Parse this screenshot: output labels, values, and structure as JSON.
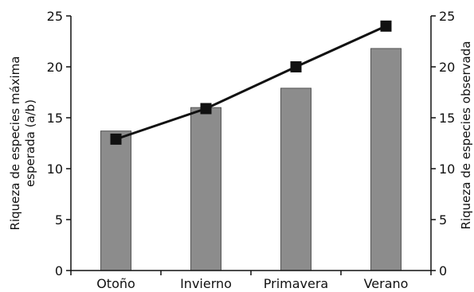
{
  "chart_data": {
    "type": "bar",
    "categories": [
      "Otoño",
      "Invierno",
      "Primavera",
      "Verano"
    ],
    "series": [
      {
        "kind": "bar",
        "axis": "left",
        "values": [
          13.7,
          16.0,
          17.9,
          21.8
        ],
        "color": "#8c8c8c"
      },
      {
        "kind": "line",
        "axis": "right",
        "marker": "square",
        "values": [
          12.9,
          15.9,
          20.0,
          24.0
        ],
        "color": "#111111"
      }
    ],
    "ylabel_left": [
      "Riqueza de especies  máxima",
      "esperada (a/b)"
    ],
    "ylabel_right": "Riqueza de especies observada",
    "ylim_left": [
      0,
      25
    ],
    "ylim_right": [
      0,
      25
    ],
    "yticks_left": [
      "0",
      "5",
      "10",
      "15",
      "20",
      "25"
    ],
    "yticks_right": [
      "0",
      "5",
      "10",
      "15",
      "20",
      "25"
    ],
    "grid": false,
    "legend": "none"
  }
}
